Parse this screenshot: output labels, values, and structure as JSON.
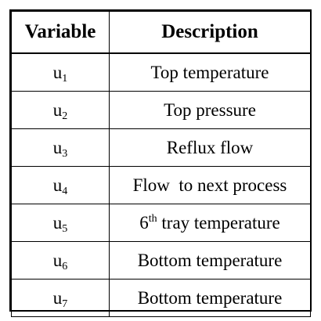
{
  "table": {
    "headers": [
      "Variable",
      "Description"
    ],
    "rows": [
      {
        "var_base": "u",
        "var_sub": "1",
        "desc": "Top temperature"
      },
      {
        "var_base": "u",
        "var_sub": "2",
        "desc": "Top pressure"
      },
      {
        "var_base": "u",
        "var_sub": "3",
        "desc": "Reflux flow"
      },
      {
        "var_base": "u",
        "var_sub": "4",
        "desc": "Flow  to next process"
      },
      {
        "var_base": "u",
        "var_sub": "5",
        "desc_pre": "6",
        "desc_sup": "th",
        "desc_post": " tray temperature"
      },
      {
        "var_base": "u",
        "var_sub": "6",
        "desc": "Bottom temperature"
      },
      {
        "var_base": "u",
        "var_sub": "7",
        "desc": "Bottom temperature"
      }
    ]
  }
}
